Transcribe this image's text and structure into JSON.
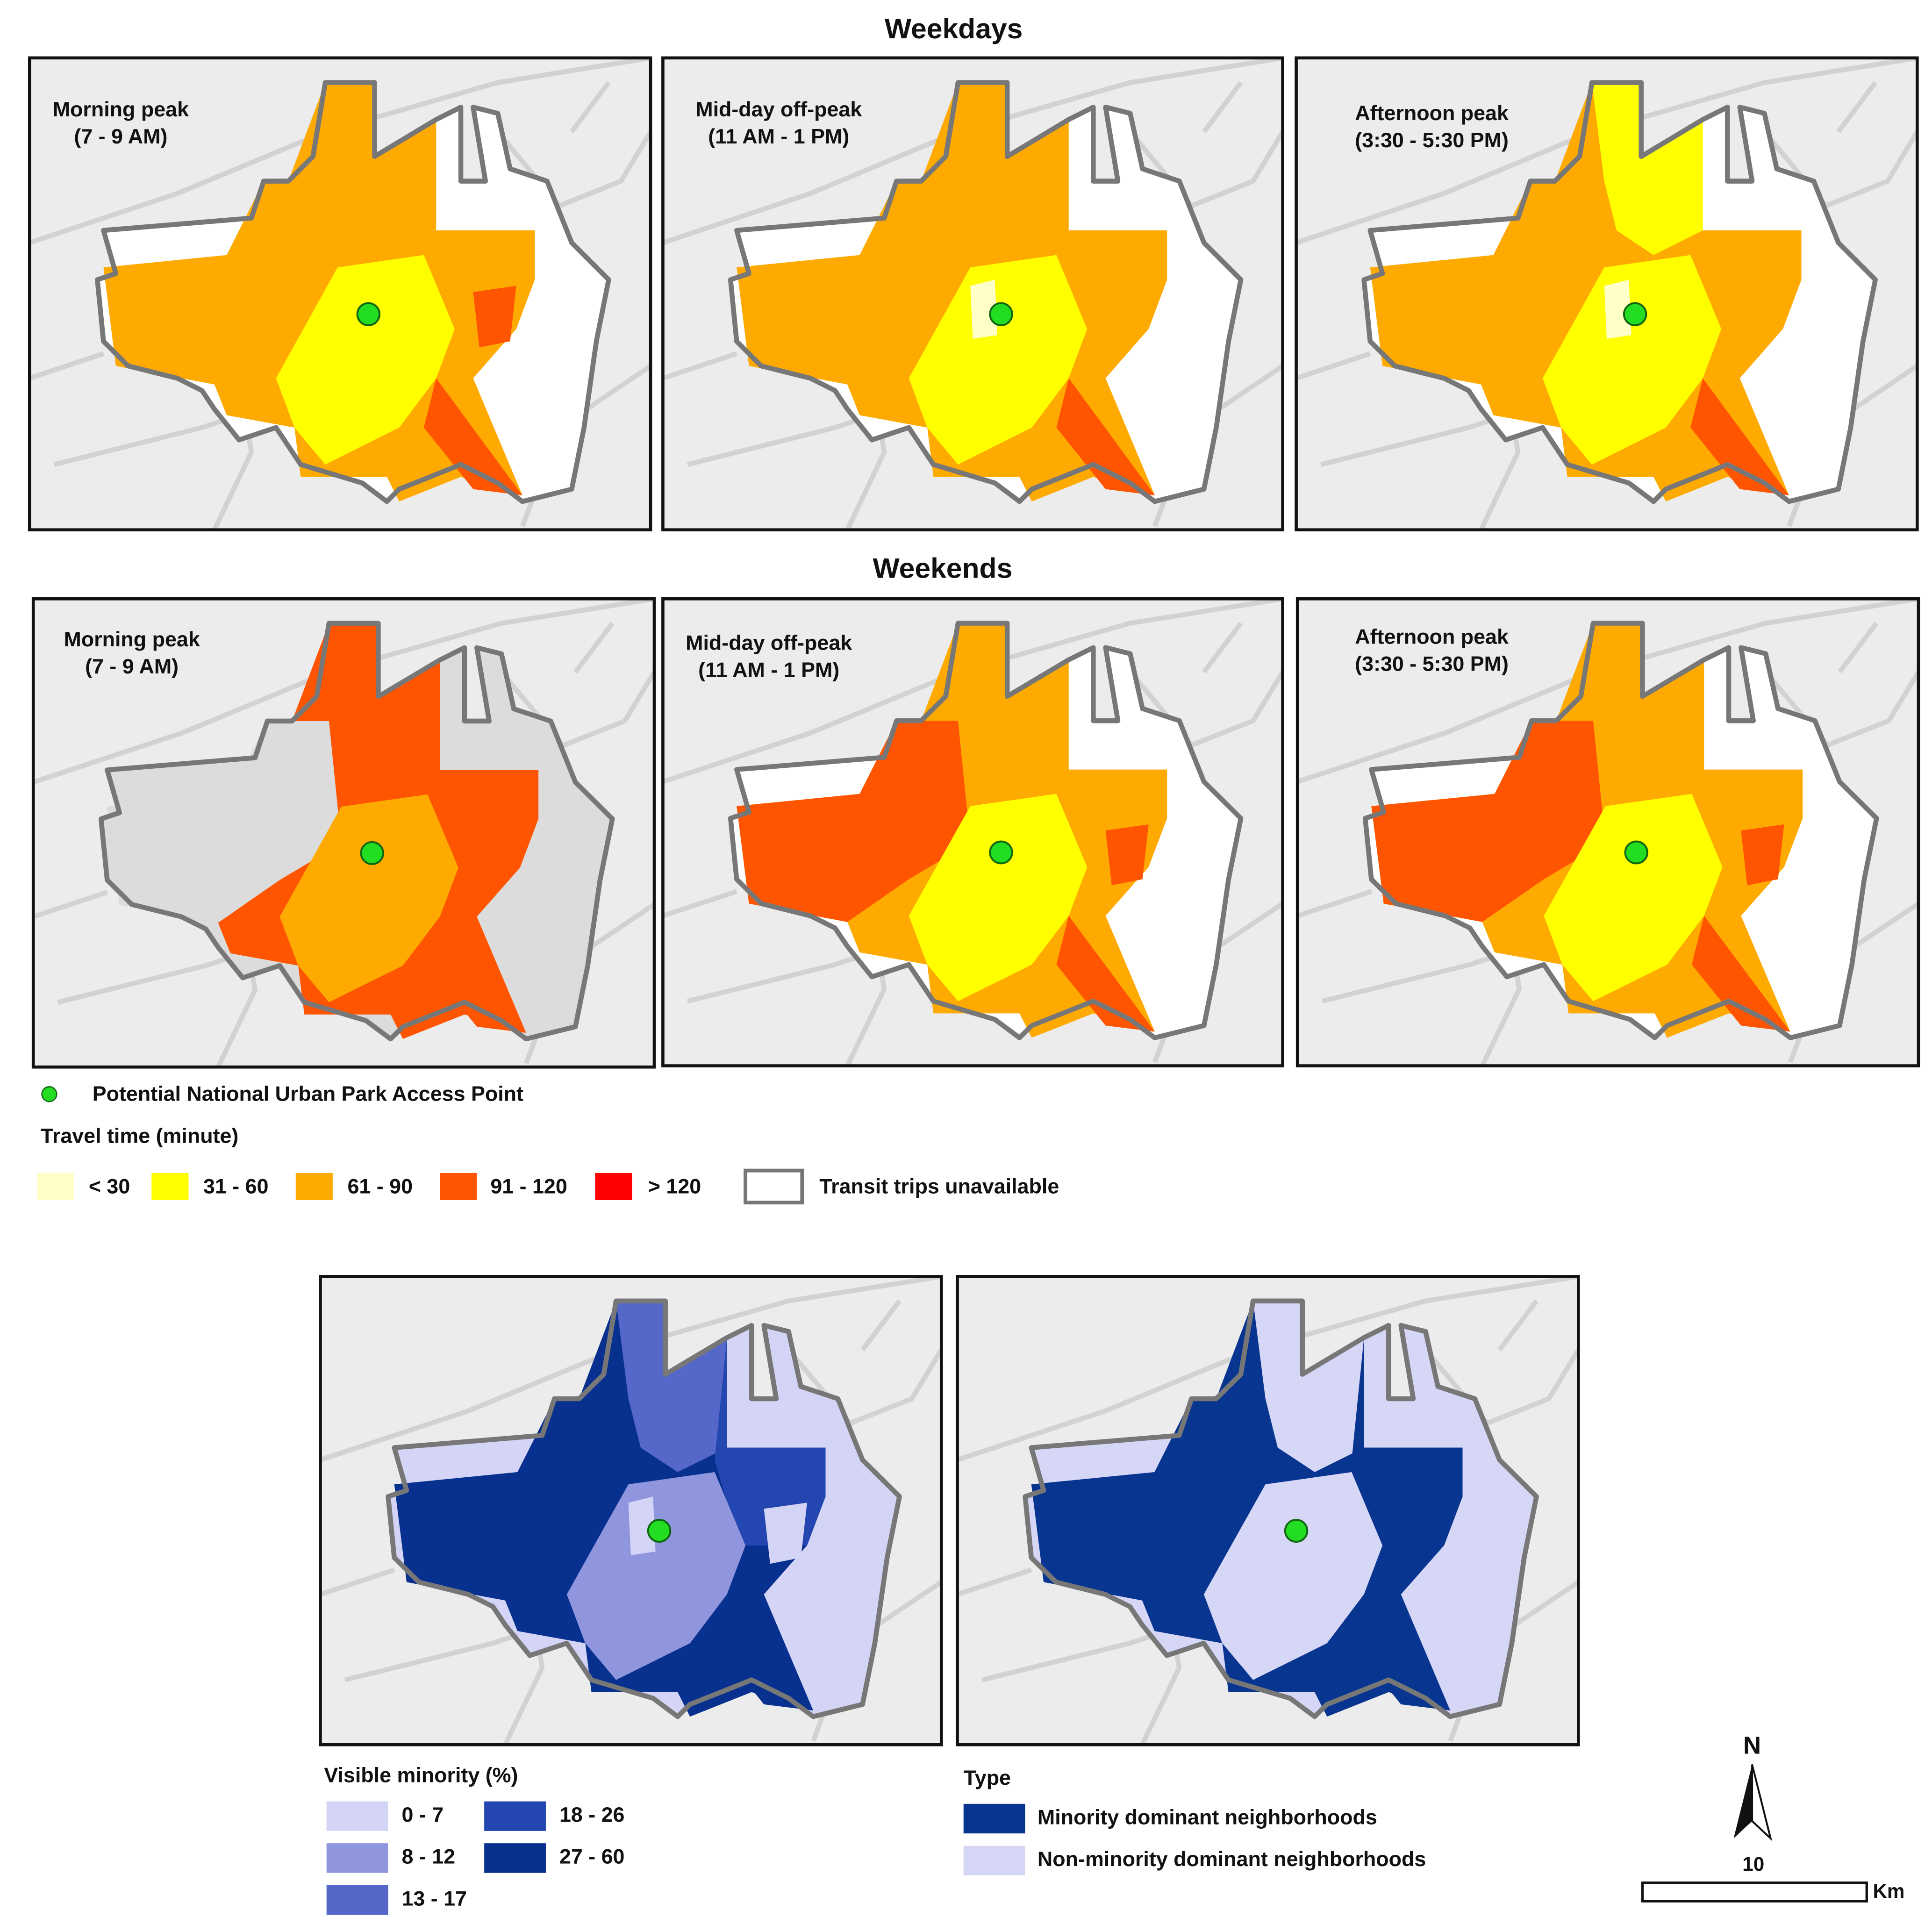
{
  "sections": [
    {
      "title": "Weekdays",
      "panels": [
        {
          "label": "Morning peak",
          "time": "(7 - 9 AM)"
        },
        {
          "label": "Mid-day off-peak",
          "time": "(11 AM - 1 PM)"
        },
        {
          "label": "Afternoon peak",
          "time": "(3:30 - 5:30 PM)"
        }
      ]
    },
    {
      "title": "Weekends",
      "panels": [
        {
          "label": "Morning peak",
          "time": "(7 - 9 AM)"
        },
        {
          "label": "Mid-day off-peak",
          "time": "(11 AM - 1 PM)"
        },
        {
          "label": "Afternoon peak",
          "time": "(3:30 - 5:30 PM)"
        }
      ]
    }
  ],
  "access_point": "Potential National Urban Park Access Point",
  "travel_time_legend": {
    "title": "Travel time (minute)",
    "items": [
      {
        "label": "< 30",
        "color": "#ffffc8"
      },
      {
        "label": "31 - 60",
        "color": "#ffff00"
      },
      {
        "label": "61 - 90",
        "color": "#ffaa00"
      },
      {
        "label": "91 - 120",
        "color": "#ff5500"
      },
      {
        "label": "> 120",
        "color": "#ff0000"
      }
    ],
    "unavailable": "Transit trips unavailable"
  },
  "minority_legend": {
    "title": "Visible minority (%)",
    "items": [
      {
        "label": "0 - 7",
        "color": "#d4d4f7"
      },
      {
        "label": "8 - 12",
        "color": "#8f96de"
      },
      {
        "label": "13 - 17",
        "color": "#5567c8"
      },
      {
        "label": "18 - 26",
        "color": "#2446b0"
      },
      {
        "label": "27 - 60",
        "color": "#08308f"
      }
    ]
  },
  "type_legend": {
    "title": "Type",
    "items": [
      {
        "label": "Minority dominant neighborhoods",
        "color": "#083590"
      },
      {
        "label": "Non-minority dominant neighborhoods",
        "color": "#d6d6f7"
      }
    ]
  },
  "north_arrow": "N",
  "scale_bar": {
    "label": "10",
    "unit": "Km"
  }
}
